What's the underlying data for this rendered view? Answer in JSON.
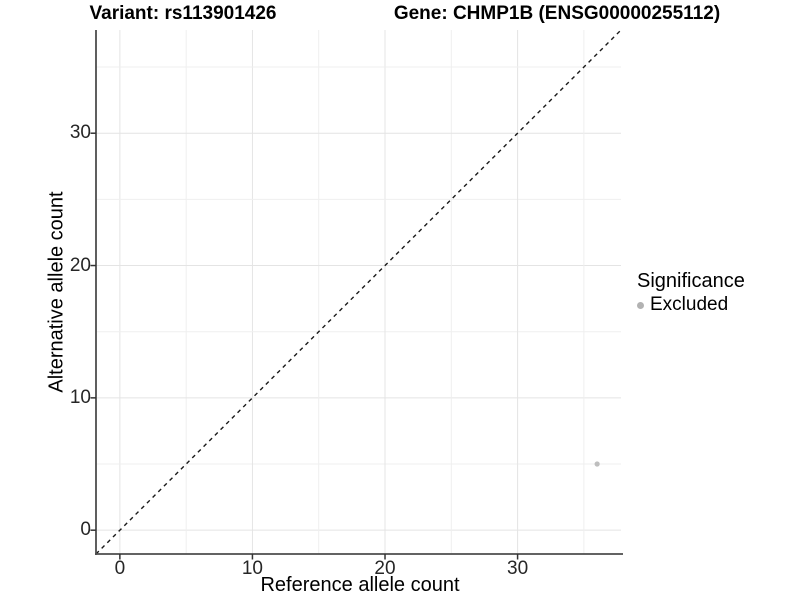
{
  "header": {
    "variant_title": "Variant: rs113901426",
    "gene_title": "Gene: CHMP1B (ENSG00000255112)"
  },
  "chart_data": {
    "type": "scatter",
    "xlabel": "Reference allele count",
    "ylabel": "Alternative allele count",
    "xlim": [
      -1.8,
      37.8
    ],
    "ylim": [
      -1.8,
      37.8
    ],
    "x_ticks": [
      0,
      10,
      20,
      30
    ],
    "y_ticks": [
      0,
      10,
      20,
      30
    ],
    "grid": "on",
    "grid_interval": 5,
    "identity_line": {
      "style": "dashed",
      "slope": 1,
      "intercept": 0
    },
    "series": [
      {
        "name": "Excluded",
        "color": "#bebebe",
        "points": [
          {
            "x": 36,
            "y": 5
          }
        ]
      }
    ],
    "legend": {
      "title": "Significance",
      "position": "right",
      "items": [
        {
          "label": "Excluded",
          "color": "#b2b2b2"
        }
      ]
    }
  },
  "colors": {
    "background": "#ffffff",
    "grid_major": "#e4e4e4",
    "grid_minor": "#efefef",
    "axis_line": "#4d4d4d",
    "tick_mark": "#333333",
    "tick_text": "#262626",
    "dashed_line": "#1a1a1a",
    "point": "#c0c0c0"
  }
}
